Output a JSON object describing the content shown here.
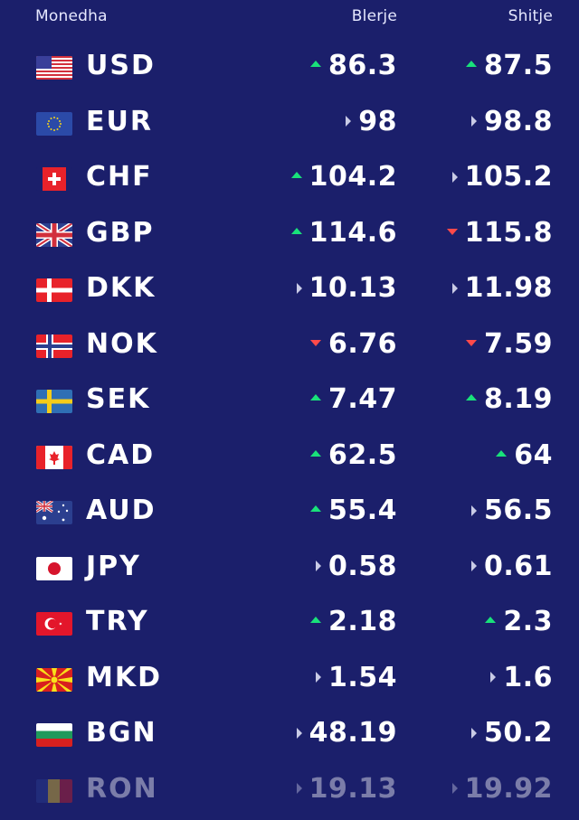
{
  "header": {
    "currency_label": "Monedha",
    "buy_label": "Blerje",
    "sell_label": "Shitje"
  },
  "colors": {
    "background": "#1b1f6b",
    "up": "#19e17a",
    "down": "#ff4a4a",
    "flat": "#c9cbe6"
  },
  "rates": [
    {
      "code": "USD",
      "flag": "flag-usa-icon",
      "buy": "86.3",
      "buy_trend": "up",
      "sell": "87.5",
      "sell_trend": "up"
    },
    {
      "code": "EUR",
      "flag": "flag-eu-icon",
      "buy": "98",
      "buy_trend": "flat",
      "sell": "98.8",
      "sell_trend": "flat"
    },
    {
      "code": "CHF",
      "flag": "flag-switzerland-icon",
      "buy": "104.2",
      "buy_trend": "up",
      "sell": "105.2",
      "sell_trend": "flat"
    },
    {
      "code": "GBP",
      "flag": "flag-uk-icon",
      "buy": "114.6",
      "buy_trend": "up",
      "sell": "115.8",
      "sell_trend": "down"
    },
    {
      "code": "DKK",
      "flag": "flag-denmark-icon",
      "buy": "10.13",
      "buy_trend": "flat",
      "sell": "11.98",
      "sell_trend": "flat"
    },
    {
      "code": "NOK",
      "flag": "flag-norway-icon",
      "buy": "6.76",
      "buy_trend": "down",
      "sell": "7.59",
      "sell_trend": "down"
    },
    {
      "code": "SEK",
      "flag": "flag-sweden-icon",
      "buy": "7.47",
      "buy_trend": "up",
      "sell": "8.19",
      "sell_trend": "up"
    },
    {
      "code": "CAD",
      "flag": "flag-canada-icon",
      "buy": "62.5",
      "buy_trend": "up",
      "sell": "64",
      "sell_trend": "up"
    },
    {
      "code": "AUD",
      "flag": "flag-australia-icon",
      "buy": "55.4",
      "buy_trend": "up",
      "sell": "56.5",
      "sell_trend": "flat"
    },
    {
      "code": "JPY",
      "flag": "flag-japan-icon",
      "buy": "0.58",
      "buy_trend": "flat",
      "sell": "0.61",
      "sell_trend": "flat"
    },
    {
      "code": "TRY",
      "flag": "flag-turkey-icon",
      "buy": "2.18",
      "buy_trend": "up",
      "sell": "2.3",
      "sell_trend": "up"
    },
    {
      "code": "MKD",
      "flag": "flag-north-macedonia-icon",
      "buy": "1.54",
      "buy_trend": "flat",
      "sell": "1.6",
      "sell_trend": "flat"
    },
    {
      "code": "BGN",
      "flag": "flag-bulgaria-icon",
      "buy": "48.19",
      "buy_trend": "flat",
      "sell": "50.2",
      "sell_trend": "flat"
    },
    {
      "code": "RON",
      "flag": "flag-romania-icon",
      "buy": "19.13",
      "buy_trend": "flat",
      "sell": "19.92",
      "sell_trend": "flat"
    }
  ]
}
